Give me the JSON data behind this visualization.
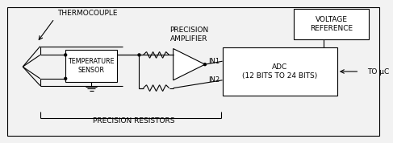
{
  "background_color": "#f2f2f2",
  "line_color": "#000000",
  "text_color": "#000000",
  "labels": {
    "thermocouple": "THERMOCOUPLE",
    "temp_sensor": "TEMPERATURE\nSENSOR",
    "precision_amp": "PRECISION\nAMPLIFIER",
    "voltage_ref": "VOLTAGE\nREFERENCE",
    "adc": "ADC\n(12 BITS TO 24 BITS)",
    "precision_resistors": "PRECISION RESISTORS",
    "in1": "IN1",
    "in2": "IN2",
    "to_uc": "TO μC"
  },
  "figsize": [
    4.87,
    1.78
  ],
  "dpi": 100
}
